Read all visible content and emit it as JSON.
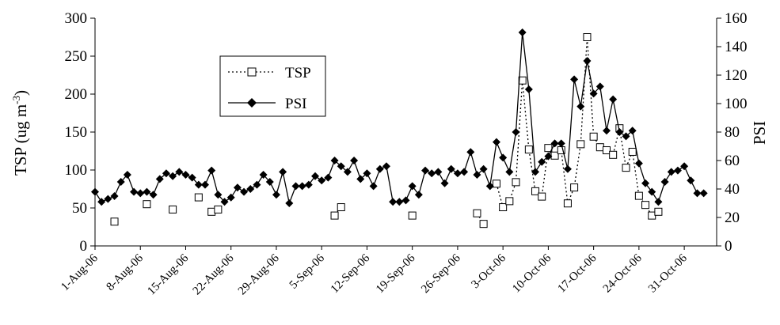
{
  "chart_data": {
    "type": "line",
    "x_ticks": [
      "1-Aug-06",
      "8-Aug-06",
      "15-Aug-06",
      "22-Aug-06",
      "29-Aug-06",
      "5-Sep-06",
      "12-Sep-06",
      "19-Sep-06",
      "26-Sep-06",
      "3-Oct-06",
      "10-Oct-06",
      "17-Oct-06",
      "24-Oct-06",
      "31-Oct-06"
    ],
    "ylabel_left": "TSP (ug m⁻³)",
    "ylabel_right": "PSI",
    "ylim_left": [
      0,
      300
    ],
    "yticks_left": [
      0,
      50,
      100,
      150,
      200,
      250,
      300
    ],
    "ylim_right": [
      0,
      160
    ],
    "yticks_right": [
      0,
      20,
      40,
      60,
      80,
      100,
      120,
      140,
      160
    ],
    "x_range_days": [
      0,
      96
    ],
    "legend": {
      "position": "upper-left",
      "entries": [
        "TSP",
        "PSI"
      ]
    },
    "grid": false,
    "series": [
      {
        "name": "TSP",
        "axis": "left",
        "style": "dotted-open-square",
        "points": [
          [
            3,
            32
          ],
          [
            8,
            55
          ],
          [
            12,
            48
          ],
          [
            16,
            64
          ],
          [
            18,
            45
          ],
          [
            19,
            48
          ],
          [
            37,
            40
          ],
          [
            38,
            51
          ],
          [
            49,
            40
          ],
          [
            59,
            43
          ],
          [
            60,
            29
          ],
          [
            62,
            82
          ],
          [
            63,
            51
          ],
          [
            64,
            59
          ],
          [
            65,
            84
          ],
          [
            66,
            218
          ],
          [
            67,
            127
          ],
          [
            68,
            72
          ],
          [
            69,
            65
          ],
          [
            70,
            129
          ],
          [
            71,
            119
          ],
          [
            72,
            126
          ],
          [
            73,
            56
          ],
          [
            74,
            77
          ],
          [
            75,
            134
          ],
          [
            76,
            275
          ],
          [
            77,
            144
          ],
          [
            78,
            130
          ],
          [
            79,
            126
          ],
          [
            80,
            120
          ],
          [
            81,
            155
          ],
          [
            82,
            103
          ],
          [
            83,
            124
          ],
          [
            84,
            66
          ],
          [
            85,
            54
          ],
          [
            86,
            40
          ],
          [
            87,
            45
          ]
        ]
      },
      {
        "name": "PSI",
        "axis": "right",
        "style": "solid-filled-diamond",
        "points": [
          [
            0,
            38
          ],
          [
            1,
            31
          ],
          [
            2,
            33
          ],
          [
            3,
            35
          ],
          [
            4,
            45
          ],
          [
            5,
            50
          ],
          [
            6,
            38
          ],
          [
            7,
            37
          ],
          [
            8,
            38
          ],
          [
            9,
            36
          ],
          [
            10,
            47
          ],
          [
            11,
            51
          ],
          [
            12,
            49
          ],
          [
            13,
            52
          ],
          [
            14,
            50
          ],
          [
            15,
            48
          ],
          [
            16,
            43
          ],
          [
            17,
            43
          ],
          [
            18,
            53
          ],
          [
            19,
            36
          ],
          [
            20,
            31
          ],
          [
            21,
            34
          ],
          [
            22,
            41
          ],
          [
            23,
            38
          ],
          [
            24,
            40
          ],
          [
            25,
            43
          ],
          [
            26,
            50
          ],
          [
            27,
            45
          ],
          [
            28,
            36
          ],
          [
            29,
            52
          ],
          [
            30,
            30
          ],
          [
            31,
            42
          ],
          [
            32,
            42
          ],
          [
            33,
            43
          ],
          [
            34,
            49
          ],
          [
            35,
            46
          ],
          [
            36,
            48
          ],
          [
            37,
            60
          ],
          [
            38,
            56
          ],
          [
            39,
            52
          ],
          [
            40,
            60
          ],
          [
            41,
            47
          ],
          [
            42,
            51
          ],
          [
            43,
            42
          ],
          [
            44,
            54
          ],
          [
            45,
            56
          ],
          [
            46,
            31
          ],
          [
            47,
            31
          ],
          [
            48,
            32
          ],
          [
            49,
            42
          ],
          [
            50,
            36
          ],
          [
            51,
            53
          ],
          [
            52,
            51
          ],
          [
            53,
            52
          ],
          [
            54,
            44
          ],
          [
            55,
            54
          ],
          [
            56,
            51
          ],
          [
            57,
            52
          ],
          [
            58,
            66
          ],
          [
            59,
            50
          ],
          [
            60,
            54
          ],
          [
            61,
            42
          ],
          [
            62,
            73
          ],
          [
            63,
            62
          ],
          [
            64,
            52
          ],
          [
            65,
            80
          ],
          [
            66,
            150
          ],
          [
            67,
            110
          ],
          [
            68,
            52
          ],
          [
            69,
            59
          ],
          [
            70,
            63
          ],
          [
            71,
            72
          ],
          [
            72,
            72
          ],
          [
            73,
            54
          ],
          [
            74,
            117
          ],
          [
            75,
            98
          ],
          [
            76,
            130
          ],
          [
            77,
            107
          ],
          [
            78,
            112
          ],
          [
            79,
            81
          ],
          [
            80,
            103
          ],
          [
            81,
            80
          ],
          [
            82,
            77
          ],
          [
            83,
            81
          ],
          [
            84,
            58
          ],
          [
            85,
            44
          ],
          [
            86,
            38
          ],
          [
            87,
            31
          ],
          [
            88,
            45
          ],
          [
            89,
            52
          ],
          [
            90,
            53
          ],
          [
            91,
            56
          ],
          [
            92,
            46
          ],
          [
            93,
            37
          ],
          [
            94,
            37
          ]
        ]
      }
    ]
  }
}
